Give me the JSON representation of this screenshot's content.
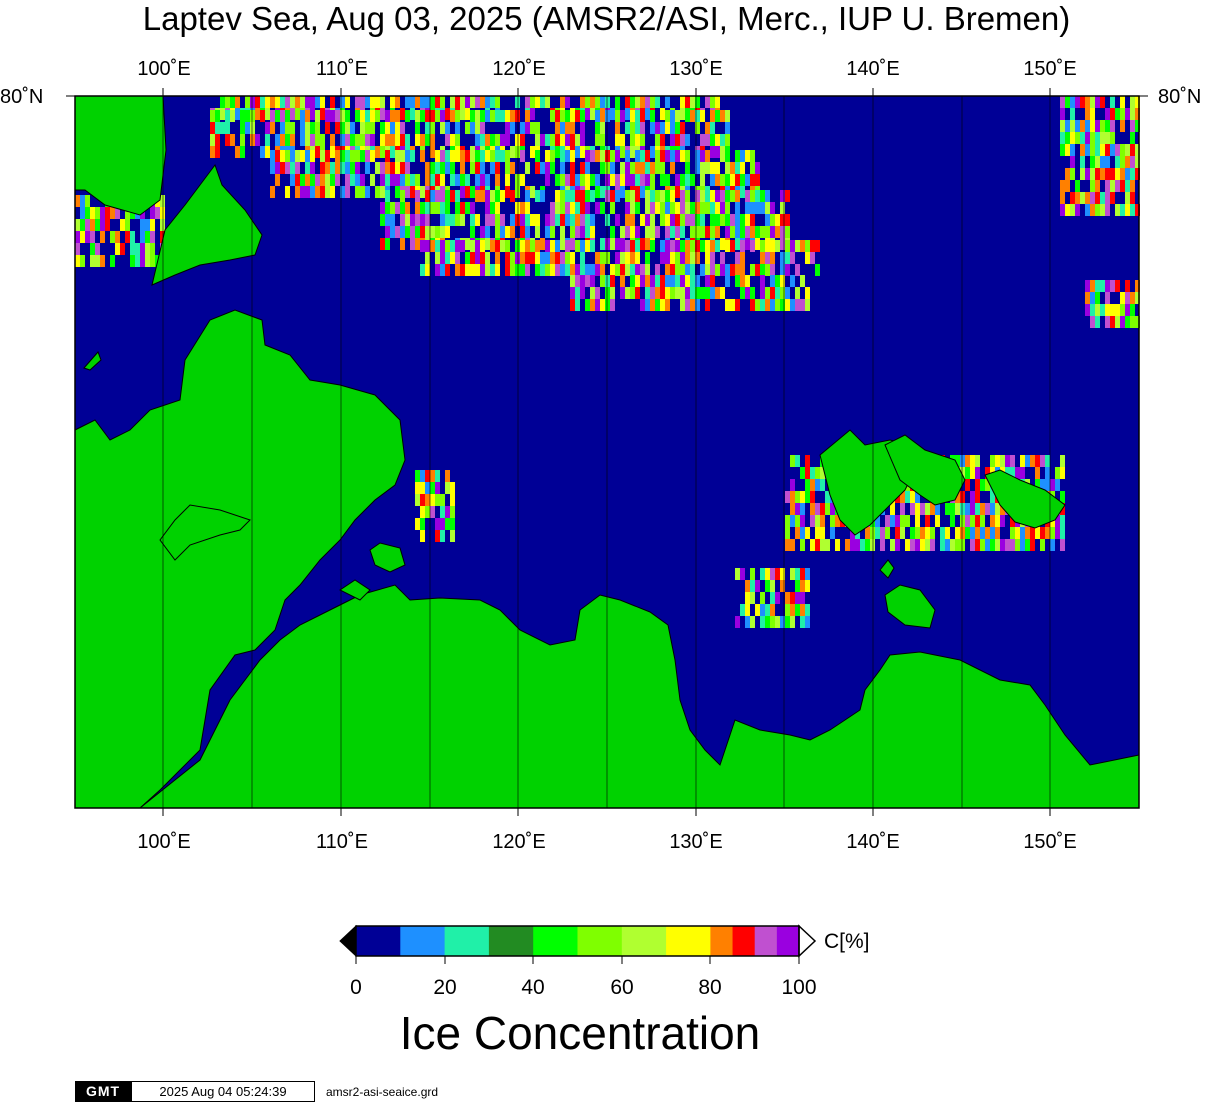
{
  "title": "Laptev Sea, Aug 03, 2025 (AMSR2/ASI, Merc., IUP U. Bremen)",
  "map": {
    "projection": "Mercator",
    "lon_range": [
      95,
      155
    ],
    "lon_tick_labels": [
      "100˚E",
      "110˚E",
      "120˚E",
      "130˚E",
      "140˚E",
      "150˚E"
    ],
    "lat_tick_labels": [
      "80˚N",
      "80˚N"
    ],
    "colors": {
      "water": "#000096",
      "land": "#00d200",
      "frame": "#000000"
    }
  },
  "legend": {
    "title": "Ice Concentration",
    "unit": "C[%]",
    "tick_labels": [
      "0",
      "20",
      "40",
      "60",
      "80",
      "100"
    ],
    "bins": [
      {
        "from": 0,
        "to": 10,
        "color": "#000096"
      },
      {
        "from": 10,
        "to": 20,
        "color": "#1e90ff"
      },
      {
        "from": 20,
        "to": 30,
        "color": "#20f0a8"
      },
      {
        "from": 30,
        "to": 40,
        "color": "#228b22"
      },
      {
        "from": 40,
        "to": 50,
        "color": "#00ff00"
      },
      {
        "from": 50,
        "to": 60,
        "color": "#7fff00"
      },
      {
        "from": 60,
        "to": 70,
        "color": "#b0ff30"
      },
      {
        "from": 70,
        "to": 80,
        "color": "#ffff00"
      },
      {
        "from": 80,
        "to": 85,
        "color": "#ff8000"
      },
      {
        "from": 85,
        "to": 90,
        "color": "#ff0000"
      },
      {
        "from": 90,
        "to": 95,
        "color": "#c050d0"
      },
      {
        "from": 95,
        "to": 100,
        "color": "#9a00e0"
      }
    ]
  },
  "footer": {
    "logo_text": "GMT",
    "timestamp": "2025 Aug 04 05:24:39",
    "filename": "amsr2-asi-seaice.grd"
  }
}
